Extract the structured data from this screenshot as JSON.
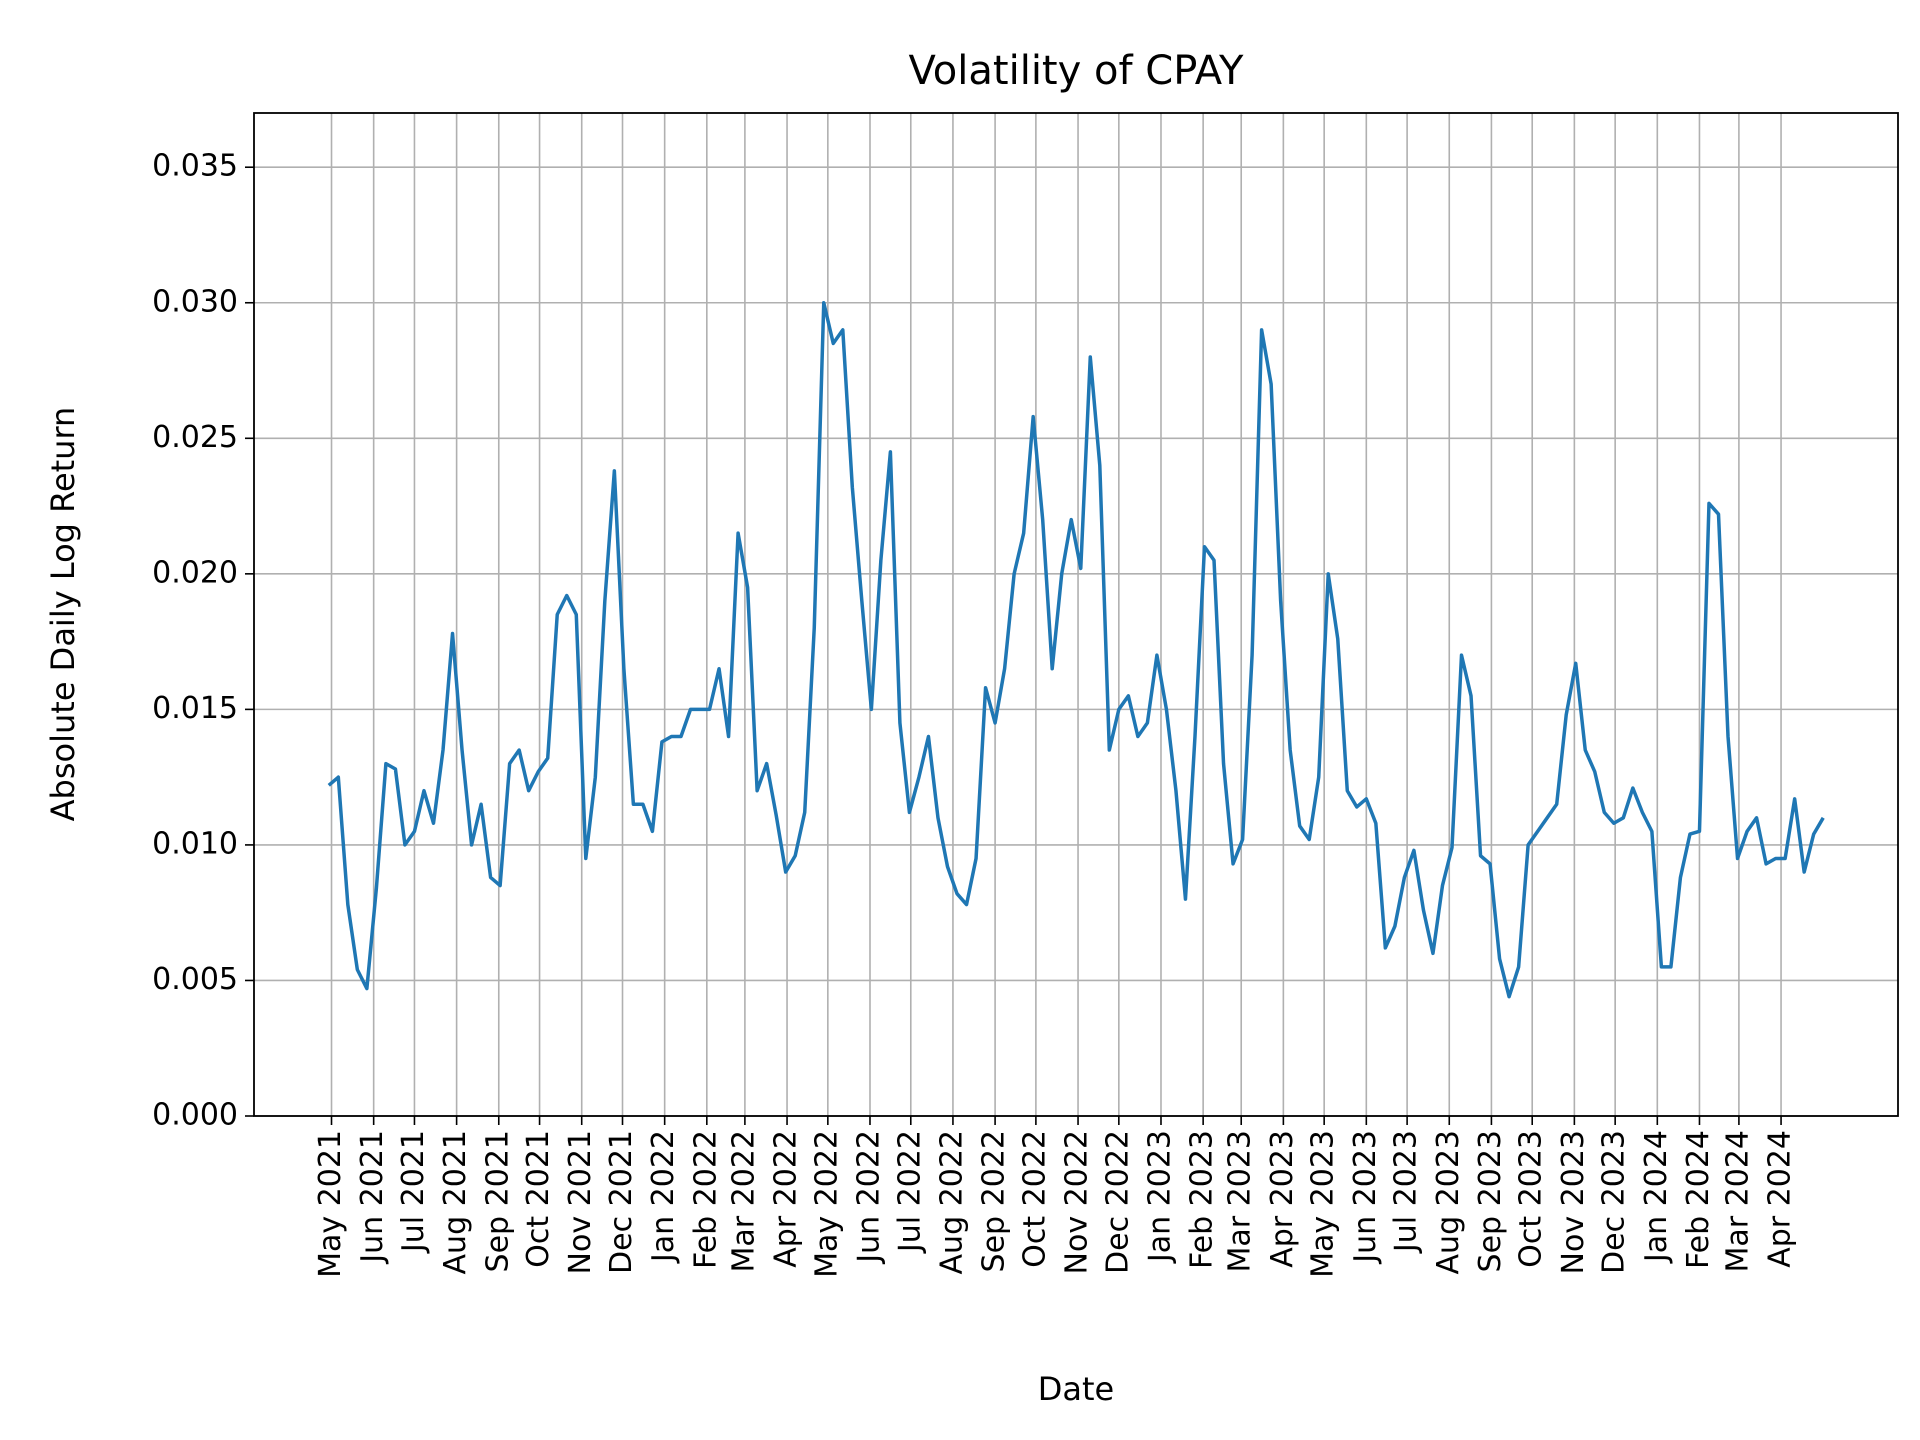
{
  "chart_data": {
    "type": "line",
    "title": "Volatility of CPAY",
    "x_label": "Date",
    "y_label": "Absolute Daily Log Return",
    "color": "#1f77b4",
    "grid": true,
    "xlim": [
      "2021-03-05",
      "2024-06-26"
    ],
    "ylim": [
      0,
      0.037
    ],
    "yticks": [
      {
        "value": 0,
        "label": "0.000"
      },
      {
        "value": 0.005,
        "label": "0.005"
      },
      {
        "value": 0.01,
        "label": "0.010"
      },
      {
        "value": 0.015,
        "label": "0.015"
      },
      {
        "value": 0.02,
        "label": "0.020"
      },
      {
        "value": 0.025,
        "label": "0.025"
      },
      {
        "value": 0.03,
        "label": "0.030"
      },
      {
        "value": 0.035,
        "label": "0.035"
      }
    ],
    "xticks": [
      {
        "value": "2021-05-01",
        "label": "May 2021"
      },
      {
        "value": "2021-06-01",
        "label": "Jun 2021"
      },
      {
        "value": "2021-07-01",
        "label": "Jul 2021"
      },
      {
        "value": "2021-08-01",
        "label": "Aug 2021"
      },
      {
        "value": "2021-09-01",
        "label": "Sep 2021"
      },
      {
        "value": "2021-10-01",
        "label": "Oct 2021"
      },
      {
        "value": "2021-11-01",
        "label": "Nov 2021"
      },
      {
        "value": "2021-12-01",
        "label": "Dec 2021"
      },
      {
        "value": "2022-01-01",
        "label": "Jan 2022"
      },
      {
        "value": "2022-02-01",
        "label": "Feb 2022"
      },
      {
        "value": "2022-03-01",
        "label": "Mar 2022"
      },
      {
        "value": "2022-04-01",
        "label": "Apr 2022"
      },
      {
        "value": "2022-05-01",
        "label": "May 2022"
      },
      {
        "value": "2022-06-01",
        "label": "Jun 2022"
      },
      {
        "value": "2022-07-01",
        "label": "Jul 2022"
      },
      {
        "value": "2022-08-01",
        "label": "Aug 2022"
      },
      {
        "value": "2022-09-01",
        "label": "Sep 2022"
      },
      {
        "value": "2022-10-01",
        "label": "Oct 2022"
      },
      {
        "value": "2022-11-01",
        "label": "Nov 2022"
      },
      {
        "value": "2022-12-01",
        "label": "Dec 2022"
      },
      {
        "value": "2023-01-01",
        "label": "Jan 2023"
      },
      {
        "value": "2023-02-01",
        "label": "Feb 2023"
      },
      {
        "value": "2023-03-01",
        "label": "Mar 2023"
      },
      {
        "value": "2023-04-01",
        "label": "Apr 2023"
      },
      {
        "value": "2023-05-01",
        "label": "May 2023"
      },
      {
        "value": "2023-06-01",
        "label": "Jun 2023"
      },
      {
        "value": "2023-07-01",
        "label": "Jul 2023"
      },
      {
        "value": "2023-08-01",
        "label": "Aug 2023"
      },
      {
        "value": "2023-09-01",
        "label": "Sep 2023"
      },
      {
        "value": "2023-10-01",
        "label": "Oct 2023"
      },
      {
        "value": "2023-11-01",
        "label": "Nov 2023"
      },
      {
        "value": "2023-12-01",
        "label": "Dec 2023"
      },
      {
        "value": "2024-01-01",
        "label": "Jan 2024"
      },
      {
        "value": "2024-02-01",
        "label": "Feb 2024"
      },
      {
        "value": "2024-03-01",
        "label": "Mar 2024"
      },
      {
        "value": "2024-04-01",
        "label": "Apr 2024"
      }
    ],
    "x": [
      "2021-04-29",
      "2021-05-06",
      "2021-05-13",
      "2021-05-20",
      "2021-05-27",
      "2021-06-03",
      "2021-06-10",
      "2021-06-17",
      "2021-06-24",
      "2021-07-01",
      "2021-07-08",
      "2021-07-15",
      "2021-07-22",
      "2021-07-29",
      "2021-08-05",
      "2021-08-12",
      "2021-08-19",
      "2021-08-26",
      "2021-09-02",
      "2021-09-09",
      "2021-09-16",
      "2021-09-23",
      "2021-09-30",
      "2021-10-07",
      "2021-10-14",
      "2021-10-21",
      "2021-10-28",
      "2021-11-04",
      "2021-11-11",
      "2021-11-18",
      "2021-11-25",
      "2021-12-02",
      "2021-12-09",
      "2021-12-16",
      "2021-12-23",
      "2021-12-30",
      "2022-01-06",
      "2022-01-13",
      "2022-01-20",
      "2022-01-27",
      "2022-02-03",
      "2022-02-10",
      "2022-02-17",
      "2022-02-24",
      "2022-03-03",
      "2022-03-10",
      "2022-03-17",
      "2022-03-24",
      "2022-03-31",
      "2022-04-07",
      "2022-04-14",
      "2022-04-21",
      "2022-04-28",
      "2022-05-05",
      "2022-05-12",
      "2022-05-19",
      "2022-05-26",
      "2022-06-02",
      "2022-06-09",
      "2022-06-16",
      "2022-06-23",
      "2022-06-30",
      "2022-07-07",
      "2022-07-14",
      "2022-07-21",
      "2022-07-28",
      "2022-08-04",
      "2022-08-11",
      "2022-08-18",
      "2022-08-25",
      "2022-09-01",
      "2022-09-08",
      "2022-09-15",
      "2022-09-22",
      "2022-09-29",
      "2022-10-06",
      "2022-10-13",
      "2022-10-20",
      "2022-10-27",
      "2022-11-03",
      "2022-11-10",
      "2022-11-17",
      "2022-11-24",
      "2022-12-01",
      "2022-12-08",
      "2022-12-15",
      "2022-12-22",
      "2022-12-29",
      "2023-01-05",
      "2023-01-12",
      "2023-01-19",
      "2023-01-26",
      "2023-02-02",
      "2023-02-09",
      "2023-02-16",
      "2023-02-23",
      "2023-03-02",
      "2023-03-09",
      "2023-03-16",
      "2023-03-23",
      "2023-03-30",
      "2023-04-06",
      "2023-04-13",
      "2023-04-20",
      "2023-04-27",
      "2023-05-04",
      "2023-05-11",
      "2023-05-18",
      "2023-05-25",
      "2023-06-01",
      "2023-06-08",
      "2023-06-15",
      "2023-06-22",
      "2023-06-29",
      "2023-07-06",
      "2023-07-13",
      "2023-07-20",
      "2023-07-27",
      "2023-08-03",
      "2023-08-10",
      "2023-08-17",
      "2023-08-24",
      "2023-08-31",
      "2023-09-07",
      "2023-09-14",
      "2023-09-21",
      "2023-09-28",
      "2023-10-05",
      "2023-10-12",
      "2023-10-19",
      "2023-10-26",
      "2023-11-02",
      "2023-11-09",
      "2023-11-16",
      "2023-11-23",
      "2023-11-30",
      "2023-12-07",
      "2023-12-14",
      "2023-12-21",
      "2023-12-28",
      "2024-01-04",
      "2024-01-11",
      "2024-01-18",
      "2024-01-25",
      "2024-02-01",
      "2024-02-08",
      "2024-02-15",
      "2024-02-22",
      "2024-02-29",
      "2024-03-07",
      "2024-03-14",
      "2024-03-21",
      "2024-03-28",
      "2024-04-04",
      "2024-04-11",
      "2024-04-18",
      "2024-04-25",
      "2024-05-02"
    ],
    "values": [
      0.0122,
      0.0125,
      0.0078,
      0.0054,
      0.0047,
      0.0084,
      0.013,
      0.0128,
      0.01,
      0.0105,
      0.012,
      0.0108,
      0.0135,
      0.0178,
      0.0135,
      0.01,
      0.0115,
      0.0088,
      0.0085,
      0.013,
      0.0135,
      0.012,
      0.0127,
      0.0132,
      0.0185,
      0.0192,
      0.0185,
      0.0095,
      0.0125,
      0.019,
      0.0238,
      0.0165,
      0.0115,
      0.0115,
      0.0105,
      0.0138,
      0.014,
      0.014,
      0.015,
      0.015,
      0.015,
      0.0165,
      0.014,
      0.0215,
      0.0195,
      0.012,
      0.013,
      0.0111,
      0.009,
      0.0096,
      0.0112,
      0.018,
      0.03,
      0.0285,
      0.029,
      0.0232,
      0.019,
      0.015,
      0.0205,
      0.0245,
      0.0145,
      0.0112,
      0.0125,
      0.014,
      0.011,
      0.0092,
      0.0082,
      0.0078,
      0.0095,
      0.0158,
      0.0145,
      0.0165,
      0.02,
      0.0215,
      0.0258,
      0.022,
      0.0165,
      0.02,
      0.022,
      0.0202,
      0.028,
      0.024,
      0.0135,
      0.015,
      0.0155,
      0.014,
      0.0145,
      0.017,
      0.015,
      0.012,
      0.008,
      0.014,
      0.021,
      0.0205,
      0.013,
      0.0093,
      0.0102,
      0.017,
      0.029,
      0.027,
      0.019,
      0.0135,
      0.0107,
      0.0102,
      0.0125,
      0.02,
      0.0176,
      0.012,
      0.0114,
      0.0117,
      0.0108,
      0.0062,
      0.007,
      0.0088,
      0.0098,
      0.0076,
      0.006,
      0.0085,
      0.0099,
      0.017,
      0.0155,
      0.0096,
      0.0093,
      0.0058,
      0.0044,
      0.0055,
      0.01,
      0.0105,
      0.011,
      0.0115,
      0.0148,
      0.0167,
      0.0135,
      0.0127,
      0.0112,
      0.0108,
      0.011,
      0.0121,
      0.0112,
      0.0105,
      0.0055,
      0.0055,
      0.0088,
      0.0104,
      0.0105,
      0.0226,
      0.0222,
      0.014,
      0.0095,
      0.0105,
      0.011,
      0.0093,
      0.0095,
      0.0095,
      0.0117,
      0.009,
      0.0104,
      0.011
    ]
  }
}
